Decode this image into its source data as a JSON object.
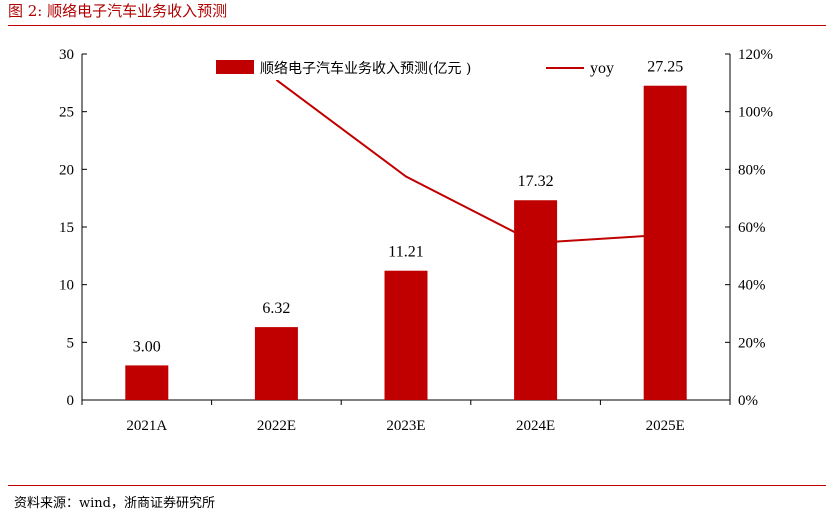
{
  "figure": {
    "title": "图 2:   顺络电子汽车业务收入预测",
    "source": "资料来源：wind，浙商证券研究所"
  },
  "colors": {
    "accent": "#c00000",
    "bar": "#c00000",
    "line": "#c00000",
    "rule": "#c00000"
  },
  "chart_data": {
    "type": "bar",
    "title": "顺络电子汽车业务收入预测",
    "categories": [
      "2021A",
      "2022E",
      "2023E",
      "2024E",
      "2025E"
    ],
    "series": [
      {
        "name": "顺络电子汽车业务收入预测(亿元 )",
        "type": "bar",
        "axis": "left",
        "values": [
          3.0,
          6.32,
          11.21,
          17.32,
          27.25
        ],
        "labels": [
          "3.00",
          "6.32",
          "11.21",
          "17.32",
          "27.25"
        ]
      },
      {
        "name": "yoy",
        "type": "line",
        "axis": "right",
        "values": [
          null,
          111,
          77.5,
          54.5,
          57.3
        ]
      }
    ],
    "left_axis": {
      "ylim": [
        0,
        30
      ],
      "ticks": [
        "0",
        "5",
        "10",
        "15",
        "20",
        "25",
        "30"
      ],
      "tick_values": [
        0,
        5,
        10,
        15,
        20,
        25,
        30
      ]
    },
    "right_axis": {
      "ylim": [
        0,
        120
      ],
      "ticks": [
        "0%",
        "20%",
        "40%",
        "60%",
        "80%",
        "100%",
        "120%"
      ],
      "tick_values": [
        0,
        20,
        40,
        60,
        80,
        100,
        120
      ]
    },
    "xlabel": "",
    "ylabel": "",
    "grid": false,
    "legend_position": "top"
  }
}
